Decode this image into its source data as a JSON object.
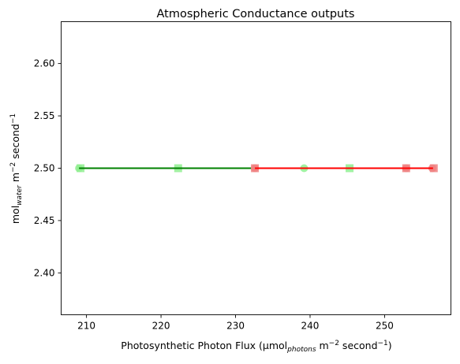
{
  "chart_data": {
    "type": "line",
    "title": "Atmospheric Conductance outputs",
    "xlabel": {
      "base": "Photosynthetic Photon Flux (μmol",
      "sub": "photons",
      "after": " m",
      "sup1": "−2",
      "mid": " second",
      "sup2": "−1",
      "end": ")"
    },
    "ylabel": {
      "base": "mol",
      "sub": "water",
      "after": " m",
      "sup1": "−2",
      "mid": " second",
      "sup2": "−1"
    },
    "xlim": [
      206.6,
      258.9
    ],
    "ylim": [
      2.36,
      2.64
    ],
    "xticks": [
      210,
      220,
      230,
      240,
      250
    ],
    "yticks": [
      2.4,
      2.45,
      2.5,
      2.55,
      2.6
    ],
    "ytick_labels": [
      "2.40",
      "2.45",
      "2.50",
      "2.55",
      "2.60"
    ],
    "grid": false,
    "series": [
      {
        "color": "#008000",
        "line_x": [
          209.0,
          232.6
        ],
        "line_y": [
          2.5,
          2.5
        ],
        "circles": {
          "color": "#90ee90",
          "x": [
            209.0,
            239.2
          ],
          "y": [
            2.5,
            2.5
          ]
        },
        "squares": {
          "color": "#90ee90",
          "x": [
            209.2,
            222.3,
            245.3
          ],
          "y": [
            2.5,
            2.5,
            2.5
          ]
        }
      },
      {
        "color": "#ff0000",
        "line_x": [
          232.6,
          256.5
        ],
        "line_y": [
          2.5,
          2.5
        ],
        "circles": {
          "color": "#f08080",
          "x": [
            232.6,
            252.9,
            256.4
          ],
          "y": [
            2.5,
            2.5,
            2.5
          ]
        },
        "squares": {
          "color": "#f08080",
          "x": [
            232.6,
            252.9,
            256.6
          ],
          "y": [
            2.5,
            2.5,
            2.5
          ]
        }
      }
    ]
  }
}
